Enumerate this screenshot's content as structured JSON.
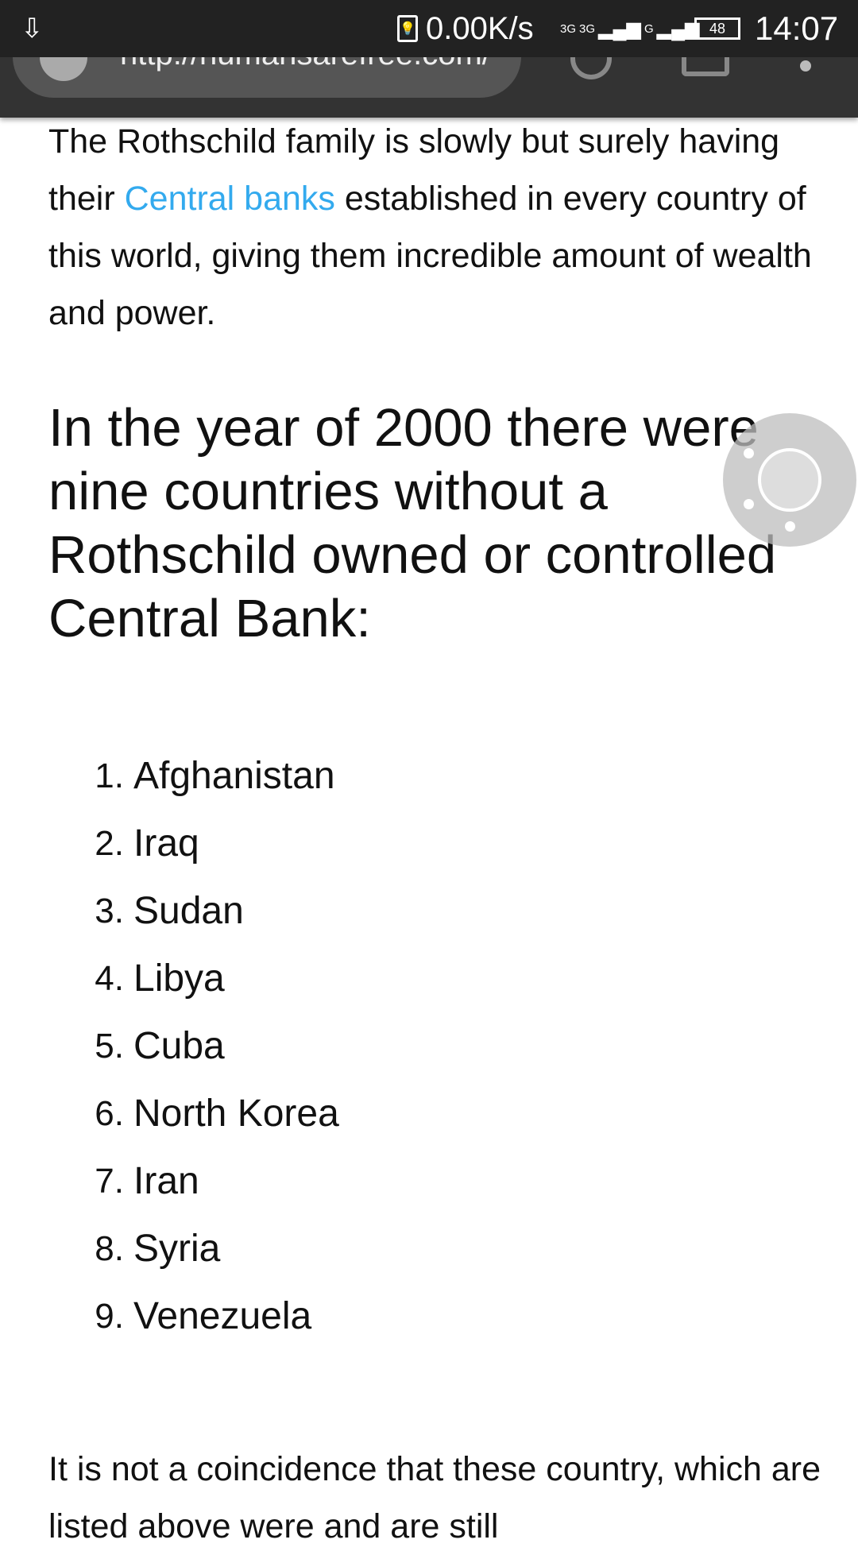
{
  "status_bar": {
    "download_icon": "download-icon",
    "net_speed": "0.00K/s",
    "sim1": "3G",
    "sim1b": "3G",
    "sim2": "G",
    "battery": "48",
    "time": "14:07"
  },
  "browser": {
    "url": "http://humansarefree.com/"
  },
  "article": {
    "intro_before_link": "The Rothschild family is slowly but surely having their ",
    "intro_link": "Central banks",
    "intro_after_link": " established in every country of this world, giving them incredible amount of wealth and power.",
    "heading": "In the year of 2000 there were nine countries without a Rothschild owned or controlled Central Bank:",
    "countries": [
      {
        "num": "1.",
        "name": "Afghanistan"
      },
      {
        "num": "2.",
        "name": "Iraq"
      },
      {
        "num": "3.",
        "name": "Sudan"
      },
      {
        "num": "4.",
        "name": "Libya"
      },
      {
        "num": "5.",
        "name": "Cuba"
      },
      {
        "num": "6.",
        "name": "North Korea"
      },
      {
        "num": "7.",
        "name": "Iran"
      },
      {
        "num": "8.",
        "name": "Syria"
      },
      {
        "num": "9.",
        "name": "Venezuela"
      }
    ],
    "closing": "It is not a coincidence that these country, which are listed above were and are still"
  },
  "colors": {
    "link": "#33aaee",
    "status_bar": "#222222",
    "toolbar": "#333333"
  }
}
